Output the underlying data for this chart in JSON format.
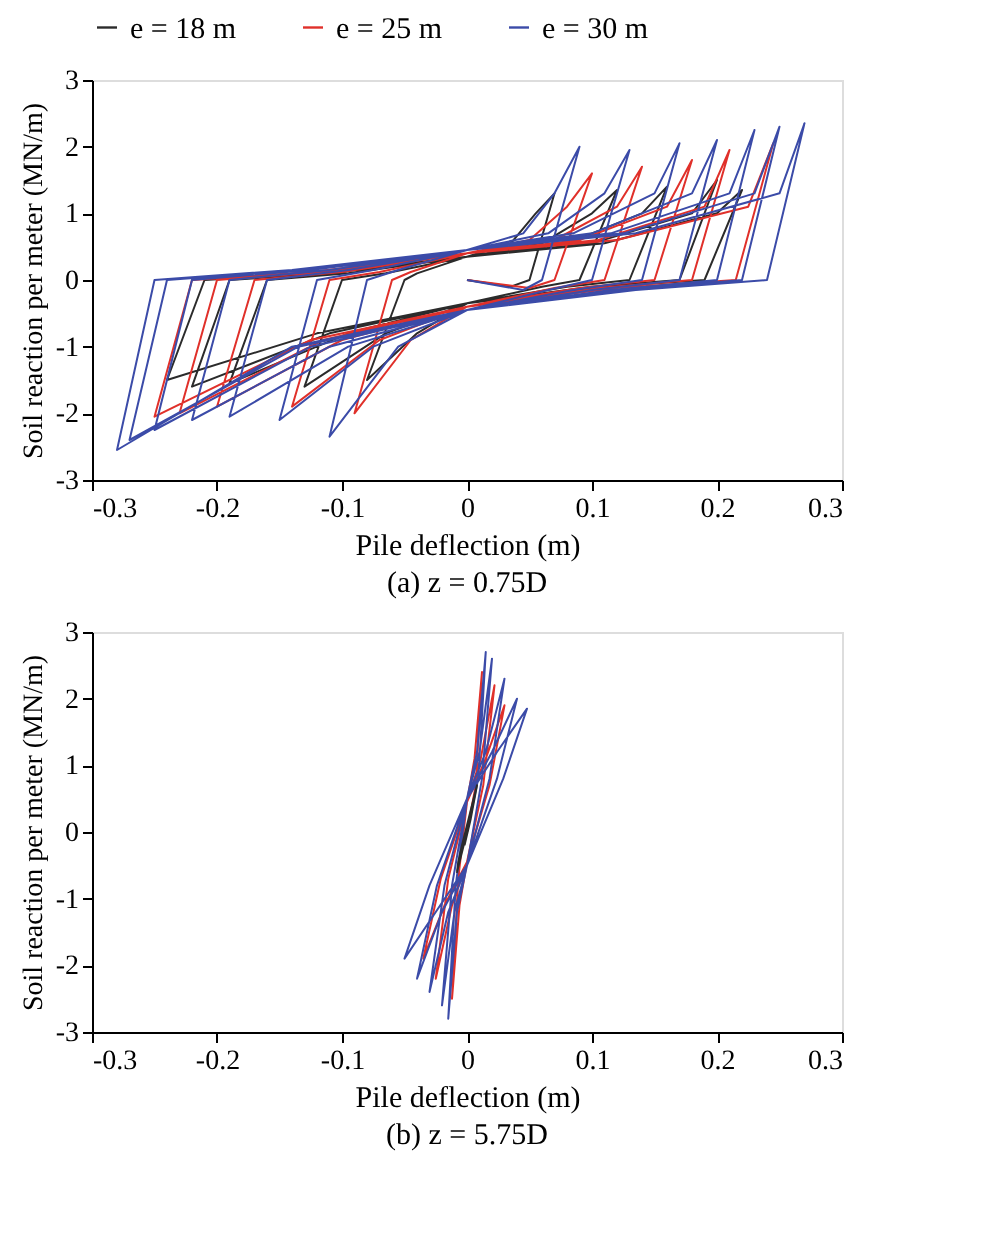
{
  "chart_data": [
    {
      "type": "line",
      "title": "(a) z = 0.75D",
      "xlabel": "Pile deflection (m)",
      "ylabel": "Soil reaction per meter (MN/m)",
      "xlim": [
        -0.3,
        0.3
      ],
      "xticks": [
        -0.3,
        -0.2,
        -0.1,
        0,
        0.1,
        0.2,
        0.3
      ],
      "ylim": [
        -3,
        3
      ],
      "yticks": [
        -3,
        -2,
        -1,
        0,
        1,
        2,
        3
      ],
      "legend": "top",
      "series": [
        {
          "name": "e = 18 m",
          "color": "#2b2b2b",
          "x": [
            0,
            0.035,
            0.05,
            0.07,
            0.055,
            0.035,
            0,
            -0.04,
            -0.05,
            -0.08,
            -0.04,
            0,
            0.06,
            0.09,
            0.12,
            0.1,
            0.06,
            0,
            -0.065,
            -0.1,
            -0.13,
            -0.065,
            0,
            0.08,
            0.13,
            0.16,
            0.14,
            0.08,
            0,
            -0.095,
            -0.16,
            -0.19,
            -0.095,
            0,
            0.1,
            0.17,
            0.2,
            0.18,
            0.1,
            0,
            -0.11,
            -0.19,
            -0.22,
            -0.11,
            0,
            0.11,
            0.19,
            0.22,
            0.2,
            0.11,
            0,
            -0.12,
            -0.21,
            -0.24,
            -0.12,
            0
          ],
          "values": [
            0,
            -0.1,
            0,
            1.3,
            1.0,
            0.55,
            0.35,
            0.1,
            0,
            -1.5,
            -0.8,
            -0.35,
            -0.1,
            0,
            1.35,
            1.0,
            0.55,
            0.35,
            0.1,
            0,
            -1.6,
            -0.8,
            -0.35,
            -0.1,
            0,
            1.4,
            1.0,
            0.55,
            0.35,
            0.1,
            0,
            -1.55,
            -0.8,
            -0.35,
            -0.1,
            0,
            1.5,
            1.0,
            0.55,
            0.35,
            0.1,
            0,
            -1.6,
            -0.8,
            -0.35,
            -0.1,
            0,
            1.35,
            1.0,
            0.55,
            0.35,
            0.1,
            0,
            -1.5,
            -0.8,
            -0.35
          ]
        },
        {
          "name": "e = 25 m",
          "color": "#e0302a",
          "x": [
            0,
            0.05,
            0.07,
            0.1,
            0.08,
            0.05,
            0,
            -0.045,
            -0.06,
            -0.09,
            -0.045,
            0,
            0.07,
            0.11,
            0.14,
            0.12,
            0.07,
            0,
            -0.07,
            -0.11,
            -0.14,
            -0.07,
            0,
            0.09,
            0.15,
            0.18,
            0.16,
            0.09,
            0,
            -0.1,
            -0.17,
            -0.2,
            -0.1,
            0,
            0.105,
            0.18,
            0.21,
            0.19,
            0.105,
            0,
            -0.115,
            -0.2,
            -0.23,
            -0.115,
            0,
            0.12,
            0.215,
            0.245,
            0.225,
            0.12,
            0,
            -0.125,
            -0.22,
            -0.25,
            -0.125,
            0
          ],
          "values": [
            0,
            -0.12,
            0,
            1.6,
            1.1,
            0.6,
            0.4,
            0.12,
            0,
            -2.0,
            -0.9,
            -0.4,
            -0.12,
            0,
            1.7,
            1.1,
            0.6,
            0.4,
            0.12,
            0,
            -1.9,
            -0.9,
            -0.4,
            -0.12,
            0,
            1.8,
            1.1,
            0.6,
            0.4,
            0.12,
            0,
            -1.9,
            -0.9,
            -0.4,
            -0.12,
            0,
            1.95,
            1.1,
            0.6,
            0.4,
            0.12,
            0,
            -2.0,
            -0.9,
            -0.4,
            -0.12,
            0,
            2.05,
            1.1,
            0.6,
            0.4,
            0.12,
            0,
            -2.05,
            -0.9,
            -0.4
          ]
        },
        {
          "name": "e = 30 m",
          "color": "#3b4ba8",
          "x": [
            0,
            0.045,
            0.06,
            0.09,
            0.07,
            0.045,
            0,
            -0.055,
            -0.08,
            -0.11,
            -0.055,
            0,
            0.065,
            0.1,
            0.13,
            0.11,
            0.065,
            0,
            -0.075,
            -0.12,
            -0.15,
            -0.075,
            0,
            0.085,
            0.14,
            0.17,
            0.15,
            0.085,
            0,
            -0.095,
            -0.16,
            -0.19,
            -0.095,
            0,
            0.1,
            0.17,
            0.2,
            0.18,
            0.1,
            0,
            -0.11,
            -0.19,
            -0.22,
            -0.11,
            0,
            0.115,
            0.2,
            0.23,
            0.21,
            0.115,
            0,
            -0.125,
            -0.22,
            -0.25,
            -0.125,
            0,
            0.125,
            0.22,
            0.25,
            0.23,
            0.125,
            0,
            -0.135,
            -0.24,
            -0.27,
            -0.135,
            0,
            0.135,
            0.24,
            0.27,
            0.25,
            0.135,
            0,
            -0.14,
            -0.25,
            -0.28,
            -0.14,
            0
          ],
          "values": [
            0,
            -0.15,
            0,
            2.0,
            1.3,
            0.7,
            0.45,
            0.15,
            0,
            -2.35,
            -1.0,
            -0.45,
            -0.15,
            0,
            1.95,
            1.3,
            0.7,
            0.45,
            0.15,
            0,
            -2.1,
            -1.0,
            -0.45,
            -0.15,
            0,
            2.05,
            1.3,
            0.7,
            0.45,
            0.15,
            0,
            -2.05,
            -1.0,
            -0.45,
            -0.15,
            0,
            2.1,
            1.3,
            0.7,
            0.45,
            0.15,
            0,
            -2.1,
            -1.0,
            -0.45,
            -0.15,
            0,
            2.25,
            1.3,
            0.7,
            0.45,
            0.15,
            0,
            -2.25,
            -1.0,
            -0.45,
            -0.15,
            0,
            2.3,
            1.3,
            0.7,
            0.45,
            0.15,
            0,
            -2.4,
            -1.0,
            -0.45,
            -0.15,
            0,
            2.35,
            1.3,
            0.7,
            0.45,
            0.15,
            0,
            -2.55,
            -1.0,
            -0.45
          ]
        }
      ]
    },
    {
      "type": "line",
      "title": "(b) z = 5.75D",
      "xlabel": "Pile deflection (m)",
      "ylabel": "Soil reaction per meter (MN/m)",
      "xlim": [
        -0.3,
        0.3
      ],
      "xticks": [
        -0.3,
        -0.2,
        -0.1,
        0,
        0.1,
        0.2,
        0.3
      ],
      "ylim": [
        -3,
        3
      ],
      "yticks": [
        -3,
        -2,
        -1,
        0,
        1,
        2,
        3
      ],
      "series": [
        {
          "color": "#e0302a",
          "x": [
            0,
            0.007,
            0.012,
            0.006,
            0,
            -0.007,
            -0.012,
            -0.006,
            0,
            0.013,
            0.022,
            0.011,
            0,
            -0.015,
            -0.025,
            -0.012,
            0,
            0.018,
            0.03,
            0.015,
            0,
            -0.021,
            -0.035,
            -0.018,
            0
          ],
          "values": [
            0,
            0.7,
            2.4,
            1.1,
            0.45,
            -0.7,
            -2.5,
            -1.1,
            -0.45,
            0.7,
            2.2,
            1.1,
            0.45,
            -0.7,
            -2.2,
            -1.1,
            -0.45,
            0.7,
            1.9,
            1.1,
            0.45,
            -0.7,
            -1.9,
            -1.1,
            -0.45
          ]
        },
        {
          "color": "#3b4ba8",
          "x": [
            0,
            0.009,
            0.015,
            0.008,
            0,
            -0.009,
            -0.015,
            -0.008,
            0,
            0.012,
            0.02,
            0.01,
            0,
            -0.012,
            -0.02,
            -0.01,
            0,
            0.018,
            0.03,
            0.015,
            0,
            -0.018,
            -0.03,
            -0.015,
            0,
            0.024,
            0.04,
            0.02,
            0,
            -0.024,
            -0.04,
            -0.02,
            0,
            0.029,
            0.048,
            0.024,
            0,
            -0.03,
            -0.05,
            -0.025,
            0
          ],
          "values": [
            0,
            0.8,
            2.7,
            1.2,
            0.5,
            -0.8,
            -2.8,
            -1.2,
            -0.5,
            0.8,
            2.6,
            1.2,
            0.5,
            -0.8,
            -2.6,
            -1.2,
            -0.5,
            0.8,
            2.3,
            1.2,
            0.5,
            -0.8,
            -2.4,
            -1.2,
            -0.5,
            0.8,
            2.0,
            1.2,
            0.5,
            -0.8,
            -2.2,
            -1.2,
            -0.5,
            0.8,
            1.85,
            1.2,
            0.5,
            -0.8,
            -1.9,
            -1.2,
            -0.5
          ]
        },
        {
          "color": "#2b2b2b",
          "x": [
            -0.002,
            0.003,
            0.006,
            0.008,
            0.004,
            0,
            -0.004,
            -0.007,
            -0.008,
            -0.004,
            0,
            0.003
          ],
          "values": [
            -0.2,
            0.2,
            0.5,
            0.7,
            0.4,
            0.1,
            -0.2,
            -0.45,
            -0.6,
            -0.3,
            0,
            0.2
          ]
        }
      ]
    }
  ]
}
